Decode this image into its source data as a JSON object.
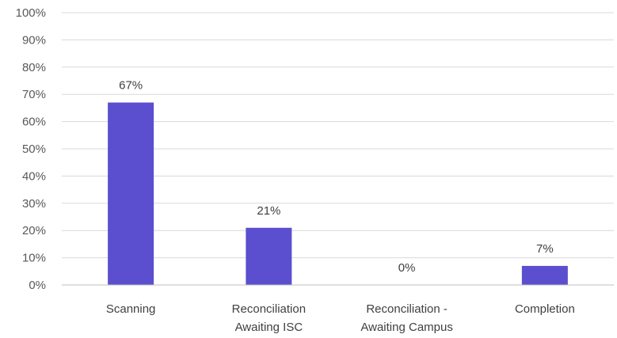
{
  "chart_data": {
    "type": "bar",
    "categories": [
      [
        "Scanning"
      ],
      [
        "Reconciliation",
        "Awaiting ISC"
      ],
      [
        "Reconciliation -",
        "Awaiting Campus"
      ],
      [
        "Completion"
      ]
    ],
    "values": [
      67,
      21,
      0,
      7
    ],
    "data_labels": [
      "67%",
      "21%",
      "0%",
      "7%"
    ],
    "yticks": [
      "0%",
      "10%",
      "20%",
      "30%",
      "40%",
      "50%",
      "60%",
      "70%",
      "80%",
      "90%",
      "100%"
    ],
    "ylim": [
      0,
      100
    ],
    "grid": true,
    "bar_color": "#5b4fcf",
    "legend": "none"
  }
}
